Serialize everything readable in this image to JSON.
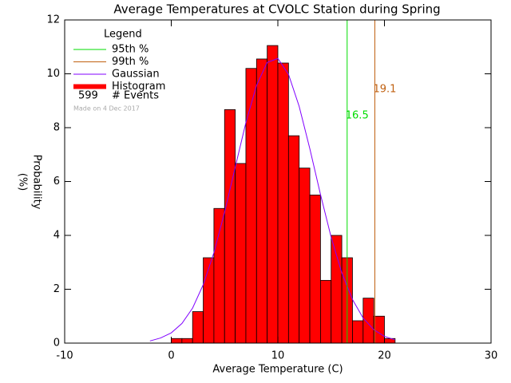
{
  "chart_data": {
    "type": "histogram",
    "title": "Average Temperatures at CVOLC Station during Spring",
    "xlabel": "Average Temperature (C)",
    "ylabel": [
      "Probability",
      "(%)"
    ],
    "bins": [
      0,
      1,
      2,
      3,
      4,
      5,
      6,
      7,
      8,
      9,
      10,
      11,
      12,
      13,
      14,
      15,
      16,
      17,
      18,
      19,
      20,
      21
    ],
    "values": [
      0.17,
      0.17,
      1.17,
      3.17,
      5.0,
      8.67,
      6.67,
      10.2,
      10.55,
      11.05,
      10.4,
      7.7,
      6.5,
      5.5,
      2.33,
      4.0,
      3.17,
      0.83,
      1.67,
      1.0,
      0.17
    ],
    "name": "Histogram",
    "color": "#ff0000",
    "gaussian": {
      "name": "Gaussian",
      "color": "#8000ff",
      "x": [
        -2,
        -1,
        0,
        1,
        2,
        3,
        4,
        5,
        6,
        7,
        8,
        9,
        10,
        11,
        12,
        13,
        14,
        15,
        16,
        17,
        18,
        19,
        20,
        21
      ],
      "values": [
        0.08,
        0.19,
        0.38,
        0.73,
        1.3,
        2.17,
        3.36,
        4.86,
        6.53,
        8.19,
        9.57,
        10.42,
        10.57,
        9.98,
        8.79,
        7.22,
        5.52,
        3.93,
        2.61,
        1.62,
        0.93,
        0.5,
        0.25,
        0.12
      ]
    },
    "percentiles": [
      {
        "name": "95th %",
        "value": 16.5,
        "color": "#00dd00"
      },
      {
        "name": "99th %",
        "value": 19.1,
        "color": "#c06010"
      }
    ],
    "legend_title": "Legend",
    "events": {
      "count": 599,
      "label": "# Events"
    },
    "note": "Made on 4 Dec 2017",
    "xlim": [
      -10,
      30
    ],
    "xticks": [
      -10,
      0,
      10,
      20,
      30
    ],
    "ylim": [
      0,
      12
    ],
    "yticks": [
      0,
      2,
      4,
      6,
      8,
      10,
      12
    ]
  }
}
